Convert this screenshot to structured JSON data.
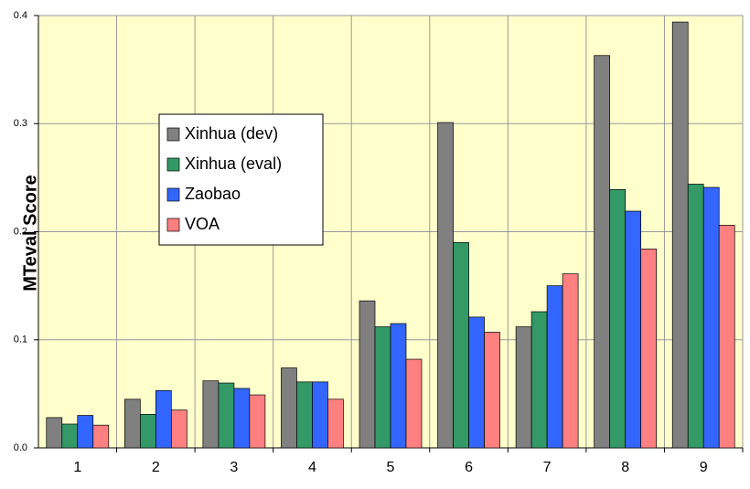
{
  "chart_data": {
    "type": "bar",
    "y_label": "MTeval Score",
    "categories": [
      "1",
      "2",
      "3",
      "4",
      "5",
      "6",
      "7",
      "8",
      "9"
    ],
    "series": [
      {
        "name": "Xinhua (dev)",
        "color": "#808080",
        "values": [
          0.028,
          0.045,
          0.062,
          0.074,
          0.136,
          0.301,
          0.112,
          0.363,
          0.394
        ]
      },
      {
        "name": "Xinhua (eval)",
        "color": "#339966",
        "values": [
          0.022,
          0.031,
          0.06,
          0.061,
          0.112,
          0.19,
          0.126,
          0.239,
          0.244
        ]
      },
      {
        "name": "Zaobao",
        "color": "#3366ff",
        "values": [
          0.03,
          0.053,
          0.055,
          0.061,
          0.115,
          0.121,
          0.15,
          0.219,
          0.241
        ]
      },
      {
        "name": "VOA",
        "color": "#ff8080",
        "values": [
          0.021,
          0.035,
          0.049,
          0.045,
          0.082,
          0.107,
          0.161,
          0.184,
          0.206
        ]
      }
    ],
    "ylim": [
      0,
      0.4
    ],
    "yticks": [
      {
        "value": 0,
        "label": "0.0"
      },
      0.1,
      0.2,
      0.3,
      0.4
    ],
    "grid": true,
    "background": "#ffffcc"
  }
}
